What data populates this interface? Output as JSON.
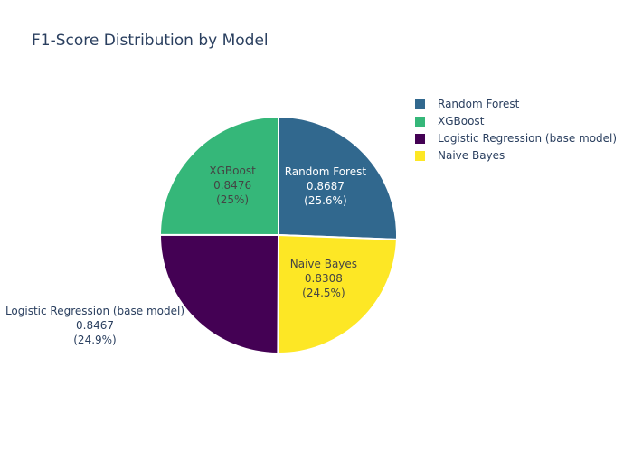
{
  "chart_data": {
    "type": "pie",
    "title": "F1-Score Distribution by Model",
    "slices": [
      {
        "name": "Random Forest",
        "value": 0.8687,
        "value_text": "0.8687",
        "percent_text": "(25.6%)",
        "color": "#31688e",
        "text_color": "#ffffff",
        "label_position": "inside"
      },
      {
        "name": "Naive Bayes",
        "value": 0.8308,
        "value_text": "0.8308",
        "percent_text": "(24.5%)",
        "color": "#fde725",
        "text_color": "#444444",
        "label_position": "inside"
      },
      {
        "name": "Logistic Regression (base model)",
        "value": 0.8467,
        "value_text": "0.8467",
        "percent_text": "(24.9%)",
        "color": "#440154",
        "text_color": "#2a3f5f",
        "label_position": "outside"
      },
      {
        "name": "XGBoost",
        "value": 0.8476,
        "value_text": "0.8476",
        "percent_text": "(25%)",
        "color": "#35b779",
        "text_color": "#444444",
        "label_position": "inside"
      }
    ],
    "legend": {
      "placement": "top-right",
      "order": [
        "Random Forest",
        "XGBoost",
        "Logistic Regression (base model)",
        "Naive Bayes"
      ]
    }
  }
}
